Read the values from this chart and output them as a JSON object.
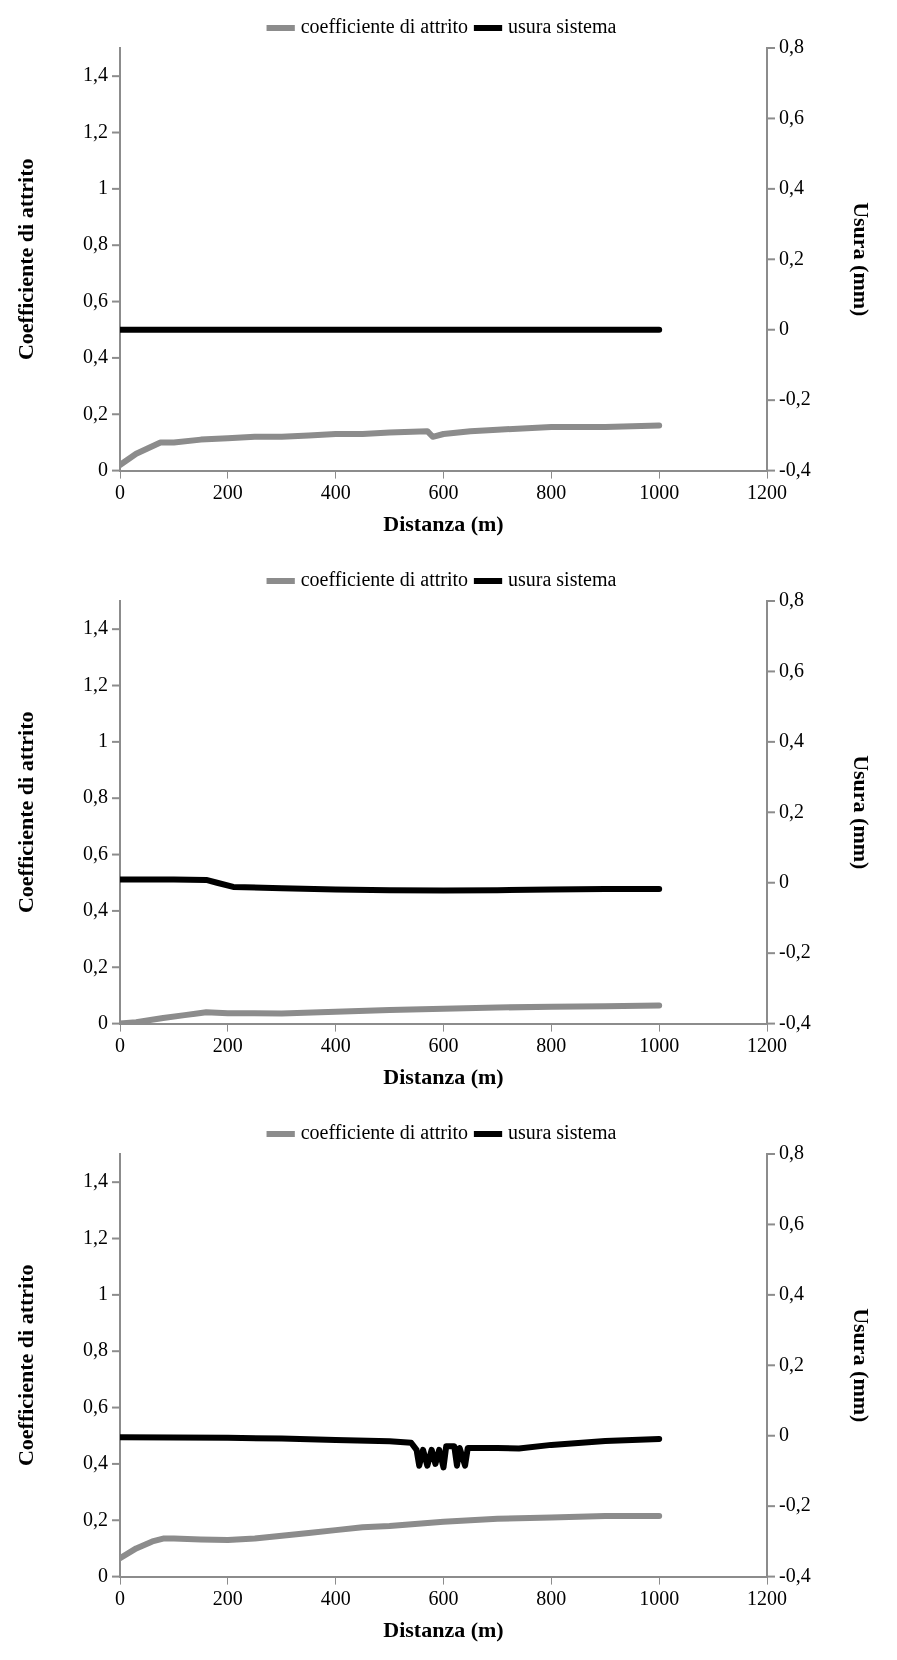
{
  "chart_data": [
    {
      "type": "line",
      "xlabel": "Distanza (m)",
      "ylabel": "Coefficiente di attrito",
      "y2label": "Usura (mm)",
      "xlim": [
        0,
        1200
      ],
      "xticks": [
        0,
        200,
        400,
        600,
        800,
        1000,
        1200
      ],
      "ylim": [
        0,
        1.5
      ],
      "yticks": [
        {
          "value": 0,
          "label": "0"
        },
        {
          "value": 0.2,
          "label": "0,2"
        },
        {
          "value": 0.4,
          "label": "0,4"
        },
        {
          "value": 0.6,
          "label": "0,6"
        },
        {
          "value": 0.8,
          "label": "0,8"
        },
        {
          "value": 1,
          "label": "1"
        },
        {
          "value": 1.2,
          "label": "1,2"
        },
        {
          "value": 1.4,
          "label": "1,4"
        }
      ],
      "y2lim": [
        -0.4,
        0.8
      ],
      "y2ticks": [
        {
          "value": -0.4,
          "label": "-0,4"
        },
        {
          "value": -0.2,
          "label": "-0,2"
        },
        {
          "value": 0,
          "label": "0"
        },
        {
          "value": 0.2,
          "label": "0,2"
        },
        {
          "value": 0.4,
          "label": "0,4"
        },
        {
          "value": 0.6,
          "label": "0,6"
        },
        {
          "value": 0.8,
          "label": "0,8"
        }
      ],
      "grid": false,
      "legend": "top",
      "marker": "none",
      "line_style": "solid",
      "series": [
        {
          "name": "coefficiente di attrito",
          "color": "#8c8c8c",
          "axis": "y",
          "x": [
            0,
            30,
            75,
            100,
            150,
            200,
            250,
            300,
            350,
            400,
            450,
            500,
            570,
            580,
            600,
            650,
            700,
            800,
            900,
            1000
          ],
          "values": [
            0.02,
            0.06,
            0.1,
            0.1,
            0.11,
            0.115,
            0.12,
            0.12,
            0.125,
            0.13,
            0.13,
            0.135,
            0.14,
            0.12,
            0.13,
            0.14,
            0.145,
            0.155,
            0.155,
            0.16
          ]
        },
        {
          "name": "usura sistema",
          "color": "#000000",
          "axis": "y2",
          "x": [
            0,
            200,
            400,
            600,
            800,
            1000
          ],
          "values": [
            0,
            0,
            0,
            0,
            0,
            0
          ]
        }
      ]
    },
    {
      "type": "line",
      "xlabel": "Distanza (m)",
      "ylabel": "Coefficiente di attrito",
      "y2label": "Usura (mm)",
      "xlim": [
        0,
        1200
      ],
      "xticks": [
        0,
        200,
        400,
        600,
        800,
        1000,
        1200
      ],
      "ylim": [
        0,
        1.5
      ],
      "yticks": [
        {
          "value": 0,
          "label": "0"
        },
        {
          "value": 0.2,
          "label": "0,2"
        },
        {
          "value": 0.4,
          "label": "0,4"
        },
        {
          "value": 0.6,
          "label": "0,6"
        },
        {
          "value": 0.8,
          "label": "0,8"
        },
        {
          "value": 1,
          "label": "1"
        },
        {
          "value": 1.2,
          "label": "1,2"
        },
        {
          "value": 1.4,
          "label": "1,4"
        }
      ],
      "y2lim": [
        -0.4,
        0.8
      ],
      "y2ticks": [
        {
          "value": -0.4,
          "label": "-0,4"
        },
        {
          "value": -0.2,
          "label": "-0,2"
        },
        {
          "value": 0,
          "label": "0"
        },
        {
          "value": 0.2,
          "label": "0,2"
        },
        {
          "value": 0.4,
          "label": "0,4"
        },
        {
          "value": 0.6,
          "label": "0,6"
        },
        {
          "value": 0.8,
          "label": "0,8"
        }
      ],
      "grid": false,
      "legend": "top",
      "marker": "none",
      "line_style": "solid",
      "series": [
        {
          "name": "coefficiente di attrito",
          "color": "#8c8c8c",
          "axis": "y",
          "x": [
            0,
            30,
            80,
            120,
            160,
            200,
            300,
            400,
            500,
            600,
            700,
            800,
            900,
            1000
          ],
          "values": [
            0,
            0.005,
            0.02,
            0.03,
            0.04,
            0.037,
            0.036,
            0.042,
            0.048,
            0.053,
            0.057,
            0.06,
            0.062,
            0.064
          ]
        },
        {
          "name": "usura sistema",
          "color": "#000000",
          "axis": "y2",
          "x": [
            0,
            100,
            160,
            180,
            210,
            300,
            400,
            500,
            600,
            700,
            800,
            900,
            1000
          ],
          "values": [
            0.009,
            0.009,
            0.008,
            0,
            -0.012,
            -0.016,
            -0.019,
            -0.021,
            -0.022,
            -0.021,
            -0.019,
            -0.018,
            -0.018
          ]
        }
      ]
    },
    {
      "type": "line",
      "xlabel": "Distanza (m)",
      "ylabel": "Coefficiente di attrito",
      "y2label": "Usura (mm)",
      "xlim": [
        0,
        1200
      ],
      "xticks": [
        0,
        200,
        400,
        600,
        800,
        1000,
        1200
      ],
      "ylim": [
        0,
        1.5
      ],
      "yticks": [
        {
          "value": 0,
          "label": "0"
        },
        {
          "value": 0.2,
          "label": "0,2"
        },
        {
          "value": 0.4,
          "label": "0,4"
        },
        {
          "value": 0.6,
          "label": "0,6"
        },
        {
          "value": 0.8,
          "label": "0,8"
        },
        {
          "value": 1,
          "label": "1"
        },
        {
          "value": 1.2,
          "label": "1,2"
        },
        {
          "value": 1.4,
          "label": "1,4"
        }
      ],
      "y2lim": [
        -0.4,
        0.8
      ],
      "y2ticks": [
        {
          "value": -0.4,
          "label": "-0,4"
        },
        {
          "value": -0.2,
          "label": "-0,2"
        },
        {
          "value": 0,
          "label": "0"
        },
        {
          "value": 0.2,
          "label": "0,2"
        },
        {
          "value": 0.4,
          "label": "0,4"
        },
        {
          "value": 0.6,
          "label": "0,6"
        },
        {
          "value": 0.8,
          "label": "0,8"
        }
      ],
      "grid": false,
      "legend": "top",
      "marker": "none",
      "line_style": "solid",
      "series": [
        {
          "name": "coefficiente di attrito",
          "color": "#8c8c8c",
          "axis": "y",
          "x": [
            0,
            30,
            60,
            80,
            100,
            150,
            200,
            250,
            300,
            350,
            400,
            450,
            500,
            600,
            700,
            800,
            900,
            1000
          ],
          "values": [
            0.065,
            0.1,
            0.125,
            0.135,
            0.135,
            0.132,
            0.13,
            0.135,
            0.145,
            0.155,
            0.165,
            0.175,
            0.18,
            0.195,
            0.205,
            0.21,
            0.215,
            0.215
          ]
        },
        {
          "name": "usura sistema",
          "color": "#000000",
          "axis": "y2",
          "x": [
            0,
            100,
            200,
            300,
            400,
            500,
            540,
            550,
            555,
            562,
            570,
            578,
            585,
            592,
            600,
            605,
            620,
            625,
            630,
            640,
            645,
            700,
            740,
            800,
            900,
            1000
          ],
          "values": [
            -0.004,
            -0.005,
            -0.006,
            -0.008,
            -0.012,
            -0.016,
            -0.02,
            -0.04,
            -0.085,
            -0.04,
            -0.085,
            -0.04,
            -0.08,
            -0.04,
            -0.09,
            -0.03,
            -0.03,
            -0.085,
            -0.035,
            -0.085,
            -0.035,
            -0.035,
            -0.036,
            -0.026,
            -0.015,
            -0.009
          ]
        }
      ]
    }
  ]
}
